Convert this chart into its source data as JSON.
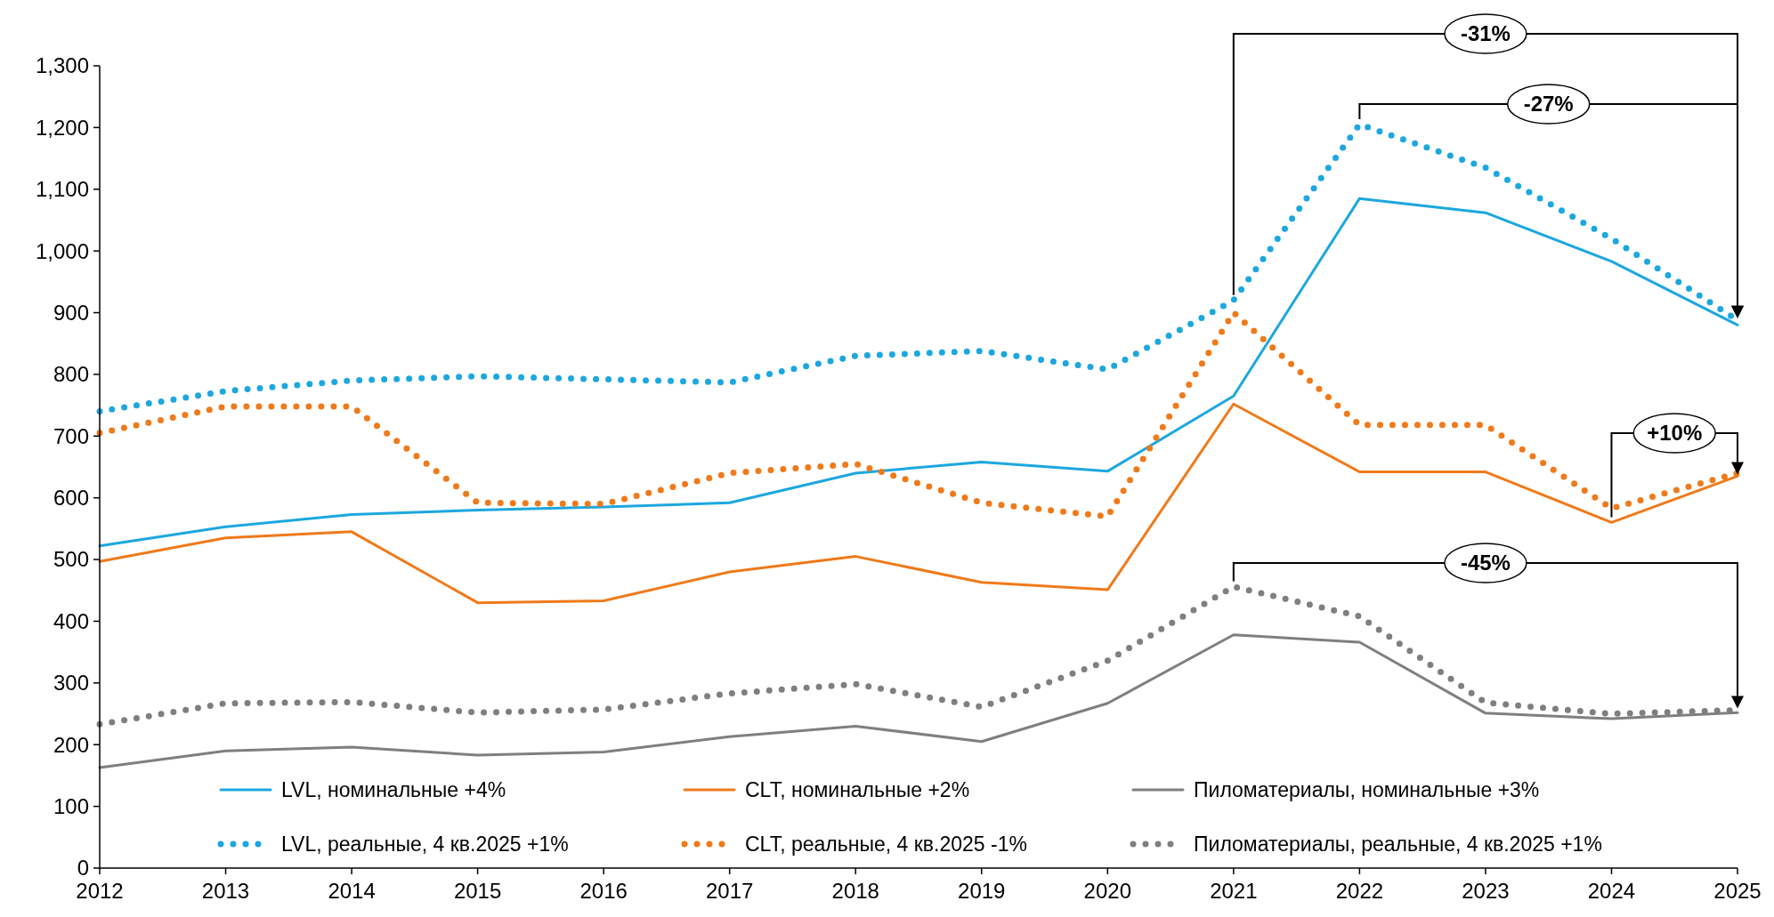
{
  "chart_data": {
    "type": "line",
    "x": [
      2012,
      2013,
      2014,
      2015,
      2016,
      2017,
      2018,
      2019,
      2020,
      2021,
      2022,
      2023,
      2024,
      2025
    ],
    "xlim": [
      2012,
      2025
    ],
    "xticks": [
      2012,
      2013,
      2014,
      2015,
      2016,
      2017,
      2018,
      2019,
      2020,
      2021,
      2022,
      2023,
      2024,
      2025
    ],
    "ylim": [
      0,
      1300
    ],
    "yticks": [
      0,
      100,
      200,
      300,
      400,
      500,
      600,
      700,
      800,
      900,
      {
        "value": 1000,
        "label": "1,000"
      },
      {
        "value": 1100,
        "label": "1,100"
      },
      {
        "value": 1200,
        "label": "1,200"
      },
      {
        "value": 1300,
        "label": "1,300"
      }
    ],
    "legend": "bottom",
    "series": [
      {
        "name": "LVL, номинальные +4%",
        "color": "#1ca7df",
        "line_style": "solid",
        "values": [
          522,
          553,
          573,
          580,
          585,
          592,
          640,
          658,
          643,
          765,
          1085,
          1062,
          983,
          880
        ]
      },
      {
        "name": "CLT, номинальные +2%",
        "color": "#ef7a1a",
        "line_style": "solid",
        "values": [
          497,
          535,
          545,
          430,
          433,
          480,
          505,
          463,
          451,
          752,
          642,
          642,
          560,
          635
        ]
      },
      {
        "name": "Пиломатериалы, номинальные +3%",
        "color": "#7f7f7f",
        "line_style": "solid",
        "values": [
          163,
          190,
          196,
          183,
          188,
          213,
          230,
          205,
          267,
          378,
          366,
          251,
          242,
          252
        ]
      },
      {
        "name": "LVL, реальные, 4 кв.2025 +1%",
        "color": "#1ca7df",
        "line_style": "dotted",
        "values": [
          740,
          773,
          790,
          797,
          792,
          787,
          830,
          838,
          808,
          920,
          1205,
          1135,
          1020,
          888
        ]
      },
      {
        "name": "CLT, реальные, 4 кв.2025 -1%",
        "color": "#ef7a1a",
        "line_style": "dotted",
        "values": [
          705,
          748,
          748,
          592,
          590,
          640,
          655,
          592,
          570,
          900,
          718,
          718,
          583,
          640
        ]
      },
      {
        "name": "Пиломатериалы, реальные, 4 кв.2025 +1%",
        "color": "#7f7f7f",
        "line_style": "dotted",
        "values": [
          233,
          267,
          269,
          252,
          257,
          283,
          298,
          261,
          336,
          456,
          408,
          268,
          250,
          256
        ]
      }
    ],
    "annotations": [
      "-31%",
      "-27%",
      "+10%",
      "-45%"
    ]
  }
}
